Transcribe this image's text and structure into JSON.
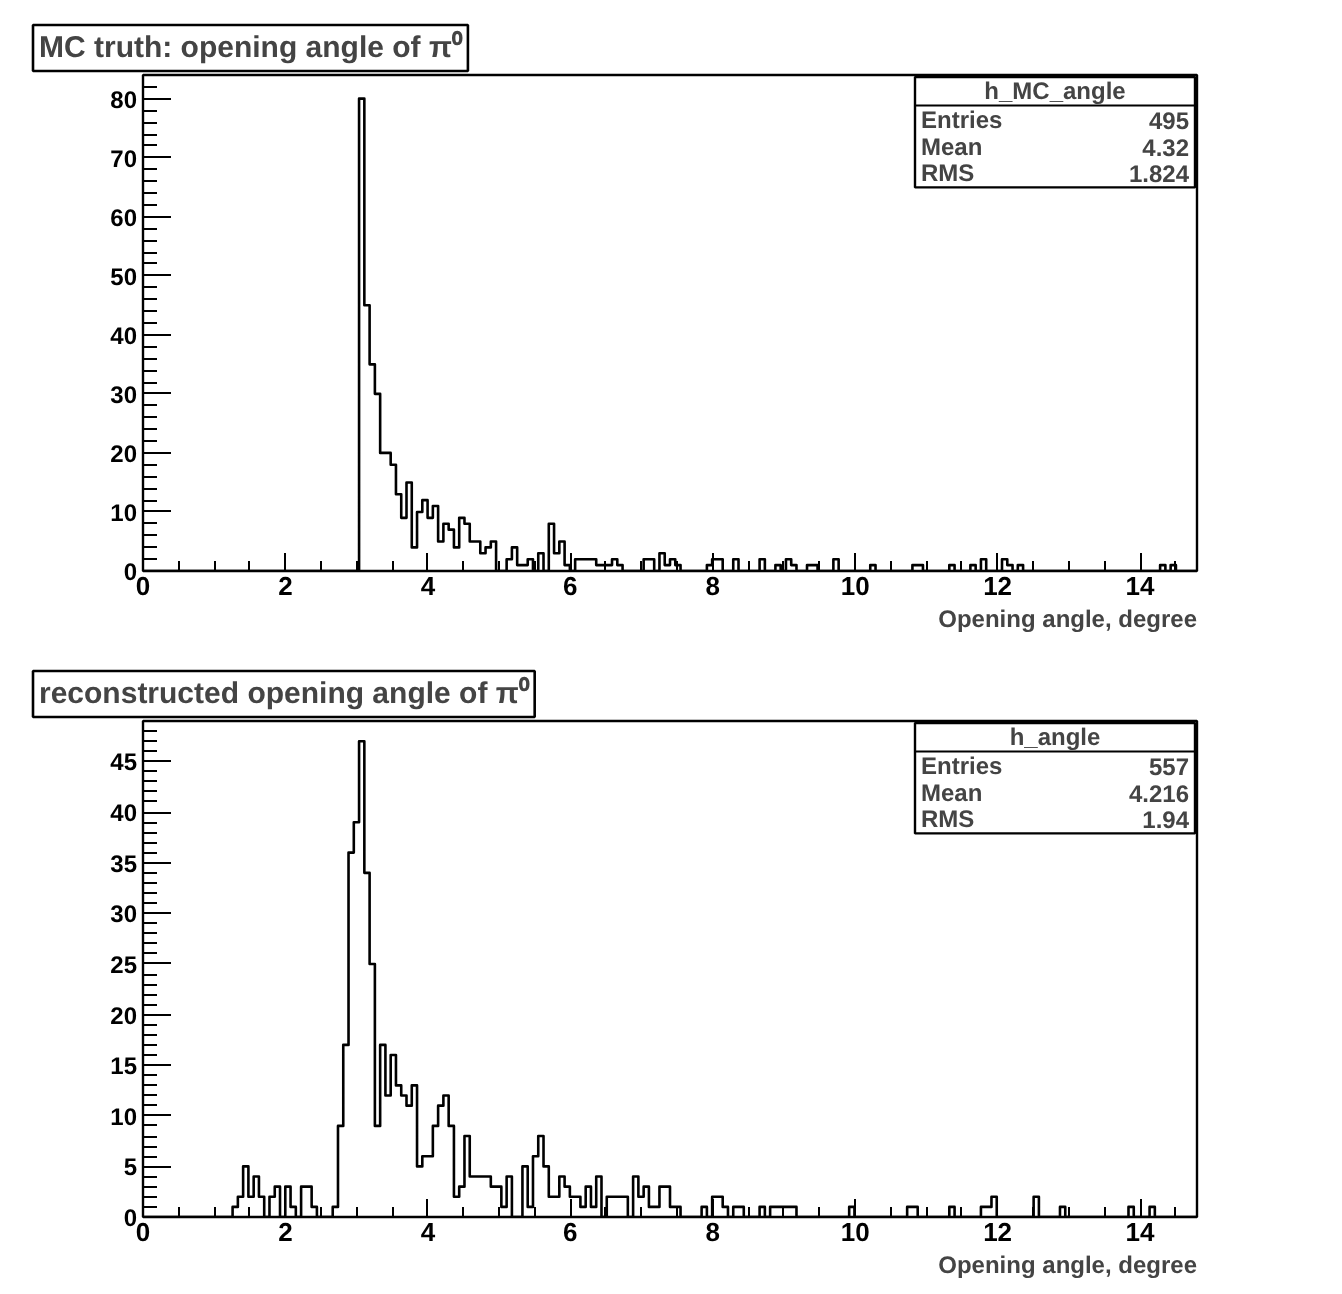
{
  "chart_data": [
    {
      "type": "histogram",
      "title": "MC truth: opening angle of π⁰",
      "xlabel": "Opening angle, degree",
      "color": "#000000",
      "annotations": [
        "h_MC_angle",
        "Entries",
        "495",
        "Mean",
        "4.32",
        "RMS",
        "1.824"
      ],
      "xlim": [
        0,
        14.8
      ],
      "ylim": [
        0,
        84
      ],
      "xticks": [
        0,
        2,
        4,
        6,
        8,
        10,
        12,
        14
      ],
      "yticks": [
        0,
        10,
        20,
        30,
        40,
        50,
        60,
        70,
        80
      ],
      "bins": [
        0,
        0.074,
        0.148,
        0.222,
        0.296,
        0.37,
        0.444,
        0.518,
        0.592,
        0.666,
        0.74,
        0.814,
        0.888,
        0.962,
        1.036,
        1.11,
        1.184,
        1.258,
        1.332,
        1.406,
        1.48,
        1.554,
        1.628,
        1.702,
        1.776,
        1.85,
        1.924,
        1.998,
        2.072,
        2.146,
        2.22,
        2.294,
        2.368,
        2.442,
        2.516,
        2.59,
        2.664,
        2.738,
        2.812,
        2.886,
        2.96,
        3.034,
        3.108,
        3.182,
        3.256,
        3.33,
        3.404,
        3.478,
        3.552,
        3.626,
        3.7,
        3.774,
        3.848,
        3.922,
        3.996,
        4.07,
        4.144,
        4.218,
        4.292,
        4.366,
        4.44,
        4.514,
        4.588,
        4.662,
        4.736,
        4.81,
        4.884,
        4.958,
        5.032,
        5.106,
        5.18,
        5.254,
        5.328,
        5.402,
        5.476,
        5.55,
        5.624,
        5.698,
        5.772,
        5.846,
        5.92,
        5.994,
        6.068,
        6.142,
        6.216,
        6.29,
        6.364,
        6.438,
        6.512,
        6.586,
        6.66,
        6.734,
        6.808,
        6.882,
        6.956,
        7.03,
        7.104,
        7.178,
        7.252,
        7.326,
        7.4,
        7.474,
        7.548,
        7.622,
        7.696,
        7.77,
        7.844,
        7.918,
        7.992,
        8.066,
        8.14,
        8.214,
        8.288,
        8.362,
        8.436,
        8.51,
        8.584,
        8.658,
        8.732,
        8.806,
        8.88,
        8.954,
        9.028,
        9.102,
        9.176,
        9.25,
        9.324,
        9.398,
        9.472,
        9.546,
        9.62,
        9.694,
        9.768,
        9.842,
        9.916,
        9.99,
        10.064,
        10.138,
        10.212,
        10.286,
        10.36,
        10.434,
        10.508,
        10.582,
        10.656,
        10.73,
        10.804,
        10.878,
        10.952,
        11.026,
        11.1,
        11.174,
        11.248,
        11.322,
        11.396,
        11.47,
        11.544,
        11.618,
        11.692,
        11.766,
        11.84,
        11.914,
        11.988,
        12.062,
        12.136,
        12.21,
        12.284,
        12.358,
        12.432,
        12.506,
        12.58,
        12.654,
        12.728,
        12.802,
        12.876,
        12.95,
        13.024,
        13.098,
        13.172,
        13.246,
        13.32,
        13.394,
        13.468,
        13.542,
        13.616,
        13.69,
        13.764,
        13.838,
        13.912,
        13.986,
        14.06,
        14.134,
        14.208,
        14.282,
        14.356,
        14.43,
        14.504,
        14.578,
        14.652,
        14.726,
        14.8
      ],
      "values": [
        0,
        0,
        0,
        0,
        0,
        0,
        0,
        0,
        0,
        0,
        0,
        0,
        0,
        0,
        0,
        0,
        0,
        0,
        0,
        0,
        0,
        0,
        0,
        0,
        0,
        0,
        0,
        0,
        0,
        0,
        0,
        0,
        0,
        0,
        0,
        0,
        0,
        0,
        0,
        0,
        0,
        80,
        45,
        35,
        30,
        20,
        20,
        18,
        13,
        9,
        15,
        4,
        10,
        12,
        9,
        11,
        5,
        8,
        7,
        4,
        9,
        8,
        5,
        5,
        3,
        4,
        5,
        0,
        0,
        2,
        4,
        1,
        1,
        2,
        0,
        3,
        0,
        8,
        3,
        5,
        1,
        0,
        2,
        2,
        2,
        2,
        1,
        1,
        1,
        2,
        1,
        0,
        0,
        0,
        0,
        2,
        2,
        0,
        3,
        1,
        2,
        1,
        0,
        0,
        0,
        0,
        0,
        1,
        2,
        2,
        0,
        0,
        2,
        0,
        0,
        0,
        0,
        2,
        0,
        0,
        1,
        0,
        2,
        1,
        0,
        0,
        1,
        1,
        0,
        0,
        0,
        2,
        0,
        0,
        0,
        0,
        0,
        0,
        1,
        0,
        0,
        0,
        0,
        0,
        0,
        0,
        1,
        1,
        0,
        0,
        0,
        0,
        0,
        1,
        0,
        0,
        0,
        1,
        0,
        2,
        0,
        0,
        0,
        2,
        1,
        0,
        1,
        0,
        0,
        0,
        0,
        0,
        0,
        0,
        0,
        0,
        0,
        0,
        0,
        0,
        0,
        0,
        0,
        0,
        0,
        0,
        0,
        0,
        0,
        0,
        0,
        0,
        0,
        1,
        0,
        1,
        0,
        0,
        0,
        0
      ]
    },
    {
      "type": "histogram",
      "title": "reconstructed opening angle of π⁰",
      "xlabel": "Opening angle, degree",
      "color": "#000000",
      "annotations": [
        "h_angle",
        "Entries",
        "557",
        "Mean",
        "4.216",
        "RMS",
        "1.94"
      ],
      "xlim": [
        0,
        14.8
      ],
      "ylim": [
        0,
        49
      ],
      "xticks": [
        0,
        2,
        4,
        6,
        8,
        10,
        12,
        14
      ],
      "yticks": [
        0,
        5,
        10,
        15,
        20,
        25,
        30,
        35,
        40,
        45
      ],
      "bins": [
        0,
        0.074,
        0.148,
        0.222,
        0.296,
        0.37,
        0.444,
        0.518,
        0.592,
        0.666,
        0.74,
        0.814,
        0.888,
        0.962,
        1.036,
        1.11,
        1.184,
        1.258,
        1.332,
        1.406,
        1.48,
        1.554,
        1.628,
        1.702,
        1.776,
        1.85,
        1.924,
        1.998,
        2.072,
        2.146,
        2.22,
        2.294,
        2.368,
        2.442,
        2.516,
        2.59,
        2.664,
        2.738,
        2.812,
        2.886,
        2.96,
        3.034,
        3.108,
        3.182,
        3.256,
        3.33,
        3.404,
        3.478,
        3.552,
        3.626,
        3.7,
        3.774,
        3.848,
        3.922,
        3.996,
        4.07,
        4.144,
        4.218,
        4.292,
        4.366,
        4.44,
        4.514,
        4.588,
        4.662,
        4.736,
        4.81,
        4.884,
        4.958,
        5.032,
        5.106,
        5.18,
        5.254,
        5.328,
        5.402,
        5.476,
        5.55,
        5.624,
        5.698,
        5.772,
        5.846,
        5.92,
        5.994,
        6.068,
        6.142,
        6.216,
        6.29,
        6.364,
        6.438,
        6.512,
        6.586,
        6.66,
        6.734,
        6.808,
        6.882,
        6.956,
        7.03,
        7.104,
        7.178,
        7.252,
        7.326,
        7.4,
        7.474,
        7.548,
        7.622,
        7.696,
        7.77,
        7.844,
        7.918,
        7.992,
        8.066,
        8.14,
        8.214,
        8.288,
        8.362,
        8.436,
        8.51,
        8.584,
        8.658,
        8.732,
        8.806,
        8.88,
        8.954,
        9.028,
        9.102,
        9.176,
        9.25,
        9.324,
        9.398,
        9.472,
        9.546,
        9.62,
        9.694,
        9.768,
        9.842,
        9.916,
        9.99,
        10.064,
        10.138,
        10.212,
        10.286,
        10.36,
        10.434,
        10.508,
        10.582,
        10.656,
        10.73,
        10.804,
        10.878,
        10.952,
        11.026,
        11.1,
        11.174,
        11.248,
        11.322,
        11.396,
        11.47,
        11.544,
        11.618,
        11.692,
        11.766,
        11.84,
        11.914,
        11.988,
        12.062,
        12.136,
        12.21,
        12.284,
        12.358,
        12.432,
        12.506,
        12.58,
        12.654,
        12.728,
        12.802,
        12.876,
        12.95,
        13.024,
        13.098,
        13.172,
        13.246,
        13.32,
        13.394,
        13.468,
        13.542,
        13.616,
        13.69,
        13.764,
        13.838,
        13.912,
        13.986,
        14.06,
        14.134,
        14.208,
        14.282,
        14.356,
        14.43,
        14.504,
        14.578,
        14.652,
        14.726,
        14.8
      ],
      "values": [
        0,
        0,
        0,
        0,
        0,
        0,
        0,
        0,
        0,
        0,
        0,
        0,
        0,
        0,
        0,
        0,
        0,
        1,
        2,
        5,
        2,
        4,
        2,
        0,
        2,
        3,
        0,
        3,
        1,
        0,
        3,
        3,
        1,
        0,
        0,
        0,
        1,
        9,
        17,
        36,
        39,
        47,
        34,
        25,
        9,
        17,
        12,
        16,
        13,
        12,
        11,
        13,
        5,
        6,
        6,
        9,
        11,
        12,
        9,
        2,
        3,
        8,
        4,
        4,
        4,
        4,
        3,
        3,
        1,
        4,
        0,
        0,
        5,
        1,
        6,
        8,
        5,
        2,
        2,
        4,
        3,
        2,
        2,
        1,
        3,
        1,
        4,
        0,
        2,
        2,
        2,
        2,
        0,
        4,
        2,
        3,
        1,
        1,
        3,
        3,
        1,
        1,
        0,
        0,
        0,
        0,
        1,
        0,
        2,
        2,
        1,
        0,
        1,
        1,
        0,
        0,
        0,
        1,
        0,
        1,
        1,
        1,
        1,
        1,
        0,
        0,
        0,
        0,
        0,
        0,
        0,
        0,
        0,
        0,
        1,
        0,
        0,
        0,
        0,
        0,
        0,
        0,
        0,
        0,
        0,
        1,
        1,
        0,
        0,
        0,
        0,
        0,
        0,
        1,
        0,
        0,
        0,
        0,
        0,
        1,
        1,
        2,
        0,
        0,
        0,
        0,
        0,
        0,
        0,
        2,
        0,
        0,
        0,
        0,
        1,
        0,
        0,
        0,
        0,
        0,
        0,
        0,
        0,
        0,
        0,
        0,
        0,
        1,
        0,
        0,
        0,
        1,
        0,
        0,
        0,
        0,
        0,
        0,
        0,
        0
      ]
    }
  ]
}
